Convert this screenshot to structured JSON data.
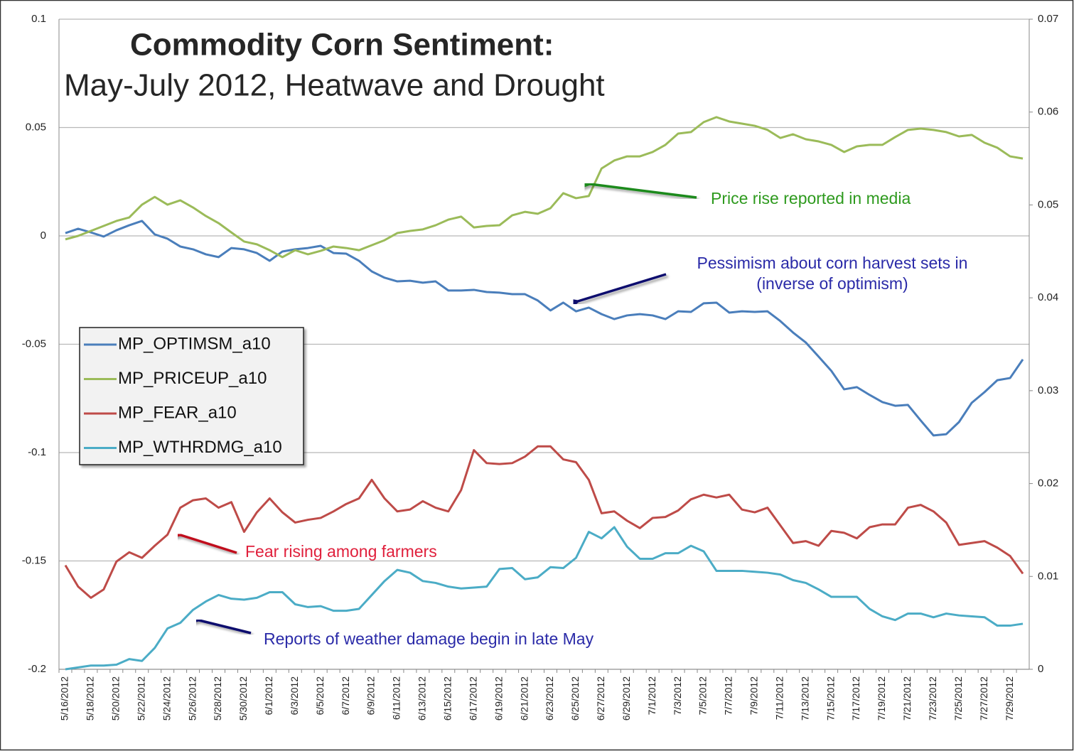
{
  "chart_data": {
    "type": "line",
    "title": "Commodity Corn Sentiment:",
    "subtitle": "May-July 2012, Heatwave and Drought",
    "categories": [
      "5/16/2012",
      null,
      "5/18/2012",
      null,
      "5/20/2012",
      null,
      "5/22/2012",
      null,
      "5/24/2012",
      null,
      "5/26/2012",
      null,
      "5/28/2012",
      null,
      "5/30/2012",
      null,
      "6/1/2012",
      null,
      "6/3/2012",
      null,
      "6/5/2012",
      null,
      "6/7/2012",
      null,
      "6/9/2012",
      null,
      "6/11/2012",
      null,
      "6/13/2012",
      null,
      "6/15/2012",
      null,
      "6/17/2012",
      null,
      "6/19/2012",
      null,
      "6/21/2012",
      null,
      "6/23/2012",
      null,
      "6/25/2012",
      null,
      "6/27/2012",
      null,
      "6/29/2012",
      null,
      "7/1/2012",
      null,
      "7/3/2012",
      null,
      "7/5/2012",
      null,
      "7/7/2012",
      null,
      "7/9/2012",
      null,
      "7/11/2012",
      null,
      "7/13/2012",
      null,
      "7/15/2012",
      null,
      "7/17/2012",
      null,
      "7/19/2012",
      null,
      "7/21/2012",
      null,
      "7/23/2012",
      null,
      "7/25/2012",
      null,
      "7/27/2012",
      null,
      "7/29/2012",
      null
    ],
    "ylim": [
      -0.2,
      0.1
    ],
    "yticks": [
      -0.2,
      -0.15,
      -0.1,
      -0.05,
      0,
      0.05,
      0.1
    ],
    "y2lim": [
      0,
      0.07
    ],
    "y2ticks": [
      0,
      0.01,
      0.02,
      0.03,
      0.04,
      0.05,
      0.06,
      0.07
    ],
    "grid": true,
    "legend": "left",
    "series": [
      {
        "name": "MP_OPTIMSM_a10",
        "color": "#4a7ebb",
        "values": [
          0.0013,
          0.0033,
          0.0016,
          -0.0003,
          0.0026,
          0.0049,
          0.0069,
          0.0007,
          -0.0013,
          -0.0049,
          -0.0062,
          -0.0085,
          -0.0098,
          -0.0056,
          -0.0062,
          -0.0079,
          -0.0115,
          -0.0072,
          -0.0062,
          -0.0056,
          -0.0046,
          -0.0079,
          -0.0082,
          -0.0115,
          -0.0164,
          -0.0193,
          -0.021,
          -0.0207,
          -0.0216,
          -0.021,
          -0.0252,
          -0.0252,
          -0.0249,
          -0.0259,
          -0.0262,
          -0.0269,
          -0.0269,
          -0.0298,
          -0.0344,
          -0.0308,
          -0.0348,
          -0.0331,
          -0.0361,
          -0.0384,
          -0.0367,
          -0.0361,
          -0.0367,
          -0.0384,
          -0.0348,
          -0.0351,
          -0.0311,
          -0.0308,
          -0.0354,
          -0.0348,
          -0.0351,
          -0.0348,
          -0.0393,
          -0.0446,
          -0.0492,
          -0.0557,
          -0.0623,
          -0.0708,
          -0.0698,
          -0.0734,
          -0.0767,
          -0.0784,
          -0.078,
          -0.0852,
          -0.0921,
          -0.0915,
          -0.0859,
          -0.077,
          -0.0721,
          -0.0666,
          -0.0656,
          -0.057
        ]
      },
      {
        "name": "MP_PRICEUP_a10",
        "color": "#9bbb59",
        "values": [
          -0.0016,
          0,
          0.0023,
          0.0046,
          0.0069,
          0.0085,
          0.0144,
          0.018,
          0.0144,
          0.0164,
          0.0131,
          0.0092,
          0.0059,
          0.0016,
          -0.0026,
          -0.0039,
          -0.0066,
          -0.0098,
          -0.0066,
          -0.0085,
          -0.0069,
          -0.0049,
          -0.0056,
          -0.0066,
          -0.0043,
          -0.002,
          0.0013,
          0.0023,
          0.003,
          0.0049,
          0.0075,
          0.0089,
          0.0039,
          0.0046,
          0.0049,
          0.0095,
          0.0111,
          0.0102,
          0.0128,
          0.0197,
          0.0174,
          0.0184,
          0.0311,
          0.0348,
          0.0367,
          0.0367,
          0.0387,
          0.042,
          0.0472,
          0.0479,
          0.0525,
          0.0548,
          0.0528,
          0.0518,
          0.0508,
          0.0489,
          0.0452,
          0.0469,
          0.0446,
          0.0436,
          0.042,
          0.0387,
          0.0413,
          0.042,
          0.042,
          0.0456,
          0.0489,
          0.0495,
          0.0489,
          0.0479,
          0.0459,
          0.0466,
          0.043,
          0.0407,
          0.0367,
          0.0357
        ]
      },
      {
        "name": "MP_FEAR_a10",
        "color": "#be4b48",
        "axis": "y2",
        "values": [
          0.0112,
          0.0089,
          0.0077,
          0.0086,
          0.0116,
          0.0126,
          0.012,
          0.0133,
          0.0145,
          0.0174,
          0.0182,
          0.0184,
          0.0174,
          0.018,
          0.0148,
          0.0169,
          0.0184,
          0.0169,
          0.0158,
          0.0161,
          0.0163,
          0.017,
          0.0178,
          0.0184,
          0.0204,
          0.0184,
          0.017,
          0.0172,
          0.0181,
          0.0174,
          0.017,
          0.0193,
          0.0236,
          0.0222,
          0.0221,
          0.0222,
          0.0229,
          0.024,
          0.024,
          0.0226,
          0.0223,
          0.0204,
          0.0168,
          0.017,
          0.016,
          0.0152,
          0.0163,
          0.0164,
          0.0171,
          0.0183,
          0.0188,
          0.0185,
          0.0188,
          0.0172,
          0.0169,
          0.0174,
          0.0155,
          0.0136,
          0.0138,
          0.0133,
          0.0149,
          0.0147,
          0.0141,
          0.0153,
          0.0156,
          0.0156,
          0.0174,
          0.0177,
          0.017,
          0.0158,
          0.0134,
          0.0136,
          0.0138,
          0.0131,
          0.0122,
          0.0103
        ]
      },
      {
        "name": "MP_WTHRDMG_a10",
        "color": "#4bacc6",
        "axis": "y2",
        "values": [
          0,
          0.0002,
          0.0004,
          0.0004,
          0.0005,
          0.0011,
          0.0009,
          0.0023,
          0.0044,
          0.005,
          0.0064,
          0.0073,
          0.008,
          0.0076,
          0.0075,
          0.0077,
          0.0083,
          0.0083,
          0.007,
          0.0067,
          0.0068,
          0.0063,
          0.0063,
          0.0065,
          0.008,
          0.0095,
          0.0107,
          0.0104,
          0.0095,
          0.0093,
          0.0089,
          0.0087,
          0.0088,
          0.0089,
          0.0108,
          0.0109,
          0.0097,
          0.0099,
          0.011,
          0.0109,
          0.012,
          0.0148,
          0.0141,
          0.0153,
          0.0132,
          0.0119,
          0.0119,
          0.0125,
          0.0125,
          0.0133,
          0.0127,
          0.0106,
          0.0106,
          0.0106,
          0.0105,
          0.0104,
          0.0102,
          0.0096,
          0.0093,
          0.0086,
          0.0078,
          0.0078,
          0.0078,
          0.0065,
          0.0057,
          0.0053,
          0.006,
          0.006,
          0.0056,
          0.006,
          0.0058,
          0.0057,
          0.0056,
          0.0047,
          0.0047,
          0.0049
        ]
      }
    ],
    "annotations": [
      {
        "lines": [
          "Price rise reported in media"
        ],
        "color": "#2e9a1e"
      },
      {
        "lines": [
          "Pessimism about corn harvest sets in",
          "(inverse of optimism)"
        ],
        "color": "#2a2aa8"
      },
      {
        "lines": [
          "Fear rising among farmers"
        ],
        "color": "#e0203c"
      },
      {
        "lines": [
          "Reports of weather damage begin in late May"
        ],
        "color": "#2a2aa8"
      }
    ]
  }
}
